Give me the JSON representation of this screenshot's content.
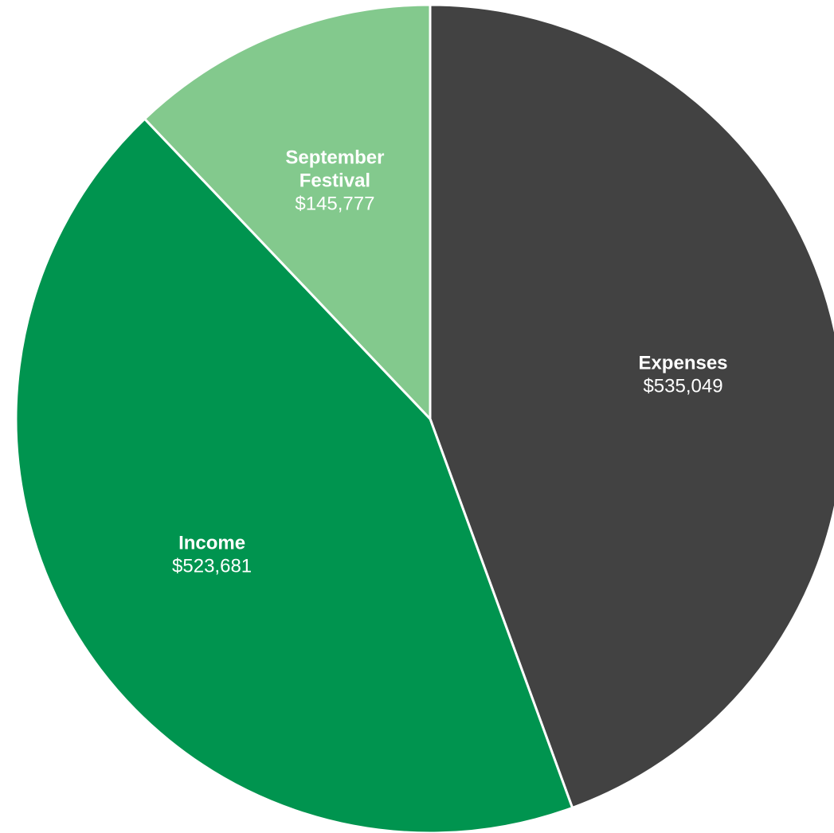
{
  "chart_data": {
    "type": "pie",
    "title": "",
    "slices": [
      {
        "name": "Expenses",
        "value": 535049,
        "value_label": "$535,049",
        "color": "#424242"
      },
      {
        "name": "Income",
        "value": 523681,
        "value_label": "$523,681",
        "color": "#00944f"
      },
      {
        "name": "September Festival",
        "value": 145777,
        "value_label": "$145,777",
        "color": "#83c98d",
        "name_lines": [
          "September",
          "Festival"
        ]
      }
    ],
    "legend": "none",
    "labels": "inside-slices"
  }
}
